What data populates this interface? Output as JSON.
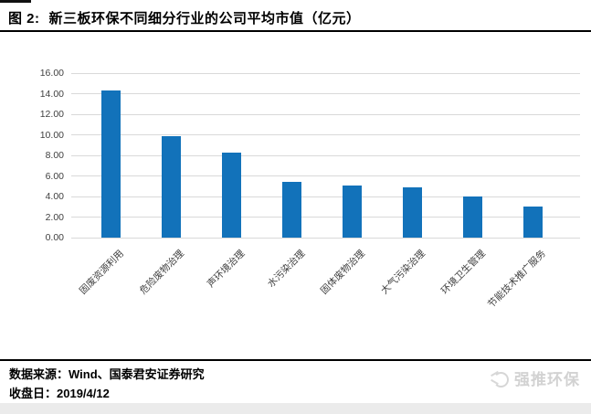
{
  "header": {
    "figure_label": "图 2:",
    "title": "新三板环保不同细分行业的公司平均市值（亿元）"
  },
  "chart_data": {
    "type": "bar",
    "title": "新三板环保不同细分行业的公司平均市值（亿元）",
    "categories": [
      "固废资源利用",
      "危险废物治理",
      "声环境治理",
      "水污染治理",
      "固体废物治理",
      "大气污染治理",
      "环境卫生管理",
      "节能技术推广服务"
    ],
    "values": [
      14.3,
      9.9,
      8.3,
      5.4,
      5.1,
      4.9,
      4.0,
      3.0
    ],
    "xlabel": "",
    "ylabel": "",
    "ylim": [
      0,
      16
    ],
    "ytick_step": 2,
    "ytick_labels": [
      "0.00",
      "2.00",
      "4.00",
      "6.00",
      "8.00",
      "10.00",
      "12.00",
      "14.00",
      "16.00"
    ],
    "grid": true,
    "legend": "none",
    "bar_color": "#1272BA",
    "gridline_color": "#D9D9D9",
    "tick_label_color": "#404040"
  },
  "footer": {
    "source_line": "数据来源：Wind、国泰君安证券研究",
    "close_date_line": "收盘日：2019/4/12"
  },
  "watermark": {
    "text": "强推环保"
  }
}
